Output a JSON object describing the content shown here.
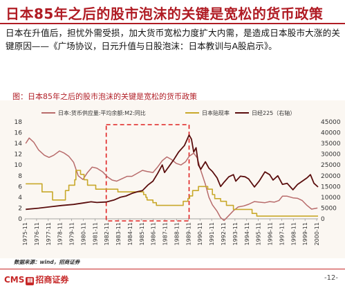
{
  "header": {
    "title": "日本85年之后的股市泡沫的关键是宽松的货币政策",
    "body": "日本在升值后，担忧外需受损，加大货币宽松力度扩大内需，是造成日本股市大涨的关键原因——《广场协议，日元升值与日股泡沫：日本教训与A股启示》。"
  },
  "colors": {
    "brand_red": "#b01c24",
    "m2_color": "#b86b6b",
    "discount_color": "#c8a82a",
    "nikkei_color": "#5a0d0d",
    "highlight_box": "#e02020"
  },
  "chart_data": {
    "type": "line",
    "title": "图：日本85年之后的股市泡沫的关键是宽松的货币政策",
    "x_tick_labels": [
      "1975-11",
      "1976-11",
      "1977-11",
      "1978-11",
      "1979-11",
      "1980-11",
      "1981-11",
      "1982-11",
      "1983-11",
      "1984-11",
      "1985-11",
      "1986-11",
      "1987-11",
      "1988-11",
      "1989-11",
      "1990-11",
      "1991-11",
      "1992-11",
      "1993-11",
      "1994-11",
      "1995-11",
      "1996-11",
      "1997-11",
      "1998-11",
      "1999-11",
      "2000-11"
    ],
    "x_range": [
      1975.83,
      2000.95
    ],
    "left_axis": {
      "min": 0,
      "max": 18,
      "ticks": [
        0,
        2,
        4,
        6,
        8,
        10,
        12,
        14,
        16,
        18
      ]
    },
    "right_axis": {
      "min": 0,
      "max": 45000,
      "ticks": [
        0,
        5000,
        10000,
        15000,
        20000,
        25000,
        30000,
        35000,
        40000,
        45000
      ]
    },
    "legend": [
      "日本:货币供应量:平均余额:M2:同比",
      "日本贴现率",
      "日经225（右轴）"
    ],
    "highlight_period": [
      1982.8,
      1989.9
    ],
    "series": [
      {
        "name": "日本:货币供应量:平均余额:M2:同比",
        "axis": "left",
        "points": [
          [
            1975.9,
            14.0
          ],
          [
            1976.2,
            15.0
          ],
          [
            1976.6,
            14.2
          ],
          [
            1977.0,
            12.8
          ],
          [
            1977.5,
            11.8
          ],
          [
            1977.9,
            11.4
          ],
          [
            1978.3,
            11.8
          ],
          [
            1978.8,
            12.6
          ],
          [
            1979.2,
            12.2
          ],
          [
            1979.6,
            11.6
          ],
          [
            1980.0,
            10.5
          ],
          [
            1980.4,
            8.0
          ],
          [
            1980.8,
            7.3
          ],
          [
            1981.2,
            8.6
          ],
          [
            1981.6,
            9.6
          ],
          [
            1982.0,
            9.4
          ],
          [
            1982.5,
            8.7
          ],
          [
            1982.9,
            7.8
          ],
          [
            1983.3,
            7.2
          ],
          [
            1983.7,
            7.0
          ],
          [
            1984.1,
            7.4
          ],
          [
            1984.6,
            7.9
          ],
          [
            1985.0,
            7.9
          ],
          [
            1985.5,
            8.5
          ],
          [
            1985.9,
            9.0
          ],
          [
            1986.3,
            8.8
          ],
          [
            1986.8,
            8.6
          ],
          [
            1987.2,
            9.6
          ],
          [
            1987.6,
            10.8
          ],
          [
            1988.0,
            11.5
          ],
          [
            1988.4,
            11.0
          ],
          [
            1988.8,
            10.3
          ],
          [
            1989.2,
            10.0
          ],
          [
            1989.6,
            10.6
          ],
          [
            1989.9,
            11.6
          ],
          [
            1990.3,
            12.2
          ],
          [
            1990.6,
            11.3
          ],
          [
            1990.9,
            9.0
          ],
          [
            1991.3,
            6.4
          ],
          [
            1991.6,
            4.0
          ],
          [
            1991.9,
            2.6
          ],
          [
            1992.3,
            1.4
          ],
          [
            1992.6,
            0.2
          ],
          [
            1992.9,
            -0.3
          ],
          [
            1993.3,
            0.6
          ],
          [
            1993.7,
            1.5
          ],
          [
            1994.1,
            2.2
          ],
          [
            1994.6,
            2.4
          ],
          [
            1995.0,
            2.7
          ],
          [
            1995.5,
            3.2
          ],
          [
            1995.9,
            3.1
          ],
          [
            1996.4,
            3.0
          ],
          [
            1996.8,
            3.2
          ],
          [
            1997.2,
            3.1
          ],
          [
            1997.6,
            3.4
          ],
          [
            1997.9,
            4.2
          ],
          [
            1998.3,
            4.2
          ],
          [
            1998.8,
            3.9
          ],
          [
            1999.2,
            3.8
          ],
          [
            1999.6,
            3.4
          ],
          [
            2000.0,
            2.5
          ],
          [
            2000.4,
            1.8
          ],
          [
            2000.9,
            2.0
          ]
        ]
      },
      {
        "name": "日本贴现率",
        "axis": "left",
        "points": [
          [
            1975.9,
            6.5
          ],
          [
            1977.3,
            6.5
          ],
          [
            1977.3,
            5.0
          ],
          [
            1978.2,
            5.0
          ],
          [
            1978.2,
            3.5
          ],
          [
            1979.3,
            3.5
          ],
          [
            1979.3,
            5.25
          ],
          [
            1979.6,
            5.25
          ],
          [
            1979.6,
            6.25
          ],
          [
            1980.1,
            6.25
          ],
          [
            1980.1,
            7.25
          ],
          [
            1980.2,
            7.25
          ],
          [
            1980.2,
            9.0
          ],
          [
            1980.6,
            9.0
          ],
          [
            1980.6,
            8.25
          ],
          [
            1980.9,
            8.25
          ],
          [
            1980.9,
            7.25
          ],
          [
            1981.2,
            7.25
          ],
          [
            1981.2,
            6.25
          ],
          [
            1981.9,
            6.25
          ],
          [
            1981.9,
            5.5
          ],
          [
            1983.8,
            5.5
          ],
          [
            1983.8,
            5.0
          ],
          [
            1986.0,
            5.0
          ],
          [
            1986.0,
            4.5
          ],
          [
            1986.2,
            4.5
          ],
          [
            1986.2,
            4.0
          ],
          [
            1986.3,
            4.0
          ],
          [
            1986.3,
            3.5
          ],
          [
            1986.8,
            3.5
          ],
          [
            1986.8,
            3.0
          ],
          [
            1987.1,
            3.0
          ],
          [
            1987.1,
            2.5
          ],
          [
            1989.4,
            2.5
          ],
          [
            1989.4,
            3.25
          ],
          [
            1989.8,
            3.25
          ],
          [
            1989.8,
            3.75
          ],
          [
            1989.95,
            3.75
          ],
          [
            1989.95,
            4.25
          ],
          [
            1990.2,
            4.25
          ],
          [
            1990.2,
            5.25
          ],
          [
            1990.7,
            5.25
          ],
          [
            1990.7,
            6.0
          ],
          [
            1991.5,
            6.0
          ],
          [
            1991.5,
            5.5
          ],
          [
            1991.9,
            5.5
          ],
          [
            1991.9,
            4.5
          ],
          [
            1992.1,
            4.5
          ],
          [
            1992.1,
            3.75
          ],
          [
            1992.6,
            3.75
          ],
          [
            1992.6,
            3.25
          ],
          [
            1993.1,
            3.25
          ],
          [
            1993.1,
            2.5
          ],
          [
            1993.7,
            2.5
          ],
          [
            1993.7,
            1.75
          ],
          [
            1995.3,
            1.75
          ],
          [
            1995.3,
            1.0
          ],
          [
            1995.7,
            1.0
          ],
          [
            1995.7,
            0.5
          ],
          [
            2000.95,
            0.5
          ]
        ]
      },
      {
        "name": "日经225（右轴）",
        "axis": "right",
        "points": [
          [
            1975.9,
            4400
          ],
          [
            1977.0,
            4950
          ],
          [
            1978.0,
            5600
          ],
          [
            1979.0,
            6200
          ],
          [
            1980.0,
            6700
          ],
          [
            1981.0,
            7500
          ],
          [
            1981.5,
            7900
          ],
          [
            1982.0,
            7600
          ],
          [
            1982.8,
            7800
          ],
          [
            1983.5,
            8800
          ],
          [
            1984.0,
            10000
          ],
          [
            1984.5,
            10600
          ],
          [
            1985.0,
            11800
          ],
          [
            1985.5,
            12600
          ],
          [
            1985.9,
            13100
          ],
          [
            1986.4,
            15800
          ],
          [
            1986.8,
            17500
          ],
          [
            1987.2,
            21000
          ],
          [
            1987.6,
            25000
          ],
          [
            1987.8,
            21500
          ],
          [
            1988.2,
            24500
          ],
          [
            1988.6,
            27500
          ],
          [
            1989.0,
            31000
          ],
          [
            1989.5,
            34000
          ],
          [
            1989.9,
            38900
          ],
          [
            1990.1,
            37000
          ],
          [
            1990.3,
            31000
          ],
          [
            1990.5,
            33000
          ],
          [
            1990.7,
            25000
          ],
          [
            1990.9,
            23000
          ],
          [
            1991.3,
            26500
          ],
          [
            1991.6,
            23500
          ],
          [
            1991.9,
            22000
          ],
          [
            1992.3,
            19000
          ],
          [
            1992.6,
            15000
          ],
          [
            1992.9,
            17000
          ],
          [
            1993.3,
            19500
          ],
          [
            1993.7,
            20500
          ],
          [
            1993.9,
            17500
          ],
          [
            1994.3,
            19800
          ],
          [
            1994.7,
            19500
          ],
          [
            1995.0,
            18500
          ],
          [
            1995.5,
            14800
          ],
          [
            1995.9,
            17500
          ],
          [
            1996.4,
            21800
          ],
          [
            1996.8,
            20500
          ],
          [
            1997.1,
            18000
          ],
          [
            1997.5,
            20000
          ],
          [
            1997.9,
            16000
          ],
          [
            1998.3,
            16500
          ],
          [
            1998.8,
            13500
          ],
          [
            1999.2,
            16000
          ],
          [
            1999.6,
            17500
          ],
          [
            2000.0,
            19000
          ],
          [
            2000.3,
            20500
          ],
          [
            2000.6,
            16500
          ],
          [
            2000.95,
            14800
          ]
        ]
      }
    ]
  },
  "source_text": "数据来源：wind，招商证券",
  "footer": {
    "logo_left": "CMS",
    "logo_mark": "Ⅲ",
    "logo_right": "招商证券",
    "page": "-12-"
  }
}
